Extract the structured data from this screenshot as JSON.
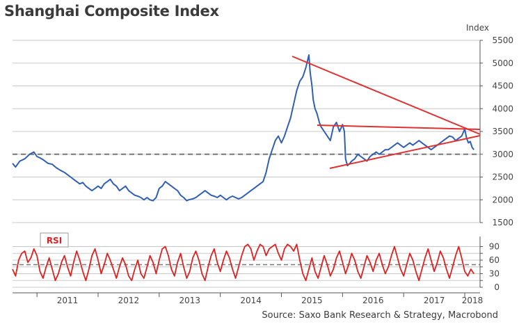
{
  "title": "Shanghai Composite Index",
  "source": "Source: Saxo Bank Research & Strategy, Macrobond",
  "colors": {
    "index_line": "#2f5fb3",
    "trend_line": "#e03030",
    "rsi_line": "#e02020",
    "grid": "#c8c8c8",
    "dashed": "#777777"
  },
  "chart_data": [
    {
      "type": "line",
      "name": "Shanghai Composite Index",
      "ylabel": "Index",
      "ylim": [
        1500,
        5500
      ],
      "yticks": [
        1500,
        2000,
        2500,
        3000,
        3500,
        4000,
        4500,
        5000,
        5500
      ],
      "xlim": [
        2010.6,
        2018.25
      ],
      "xticks": [
        {
          "label": "2011",
          "pos": 2011.0
        },
        {
          "label": "2012",
          "pos": 2012.0
        },
        {
          "label": "2013",
          "pos": 2013.0
        },
        {
          "label": "2014",
          "pos": 2014.0
        },
        {
          "label": "2015",
          "pos": 2015.0
        },
        {
          "label": "2016",
          "pos": 2016.0
        },
        {
          "label": "2017",
          "pos": 2017.0
        },
        {
          "label": "2018",
          "pos": 2018.0
        }
      ],
      "reference_line": 3000,
      "x": [
        2010.6,
        2010.65,
        2010.72,
        2010.8,
        2010.88,
        2010.95,
        2011.0,
        2011.05,
        2011.1,
        2011.18,
        2011.25,
        2011.32,
        2011.38,
        2011.45,
        2011.5,
        2011.55,
        2011.6,
        2011.65,
        2011.7,
        2011.75,
        2011.8,
        2011.85,
        2011.9,
        2011.95,
        2012.0,
        2012.05,
        2012.1,
        2012.15,
        2012.2,
        2012.25,
        2012.3,
        2012.35,
        2012.4,
        2012.45,
        2012.5,
        2012.55,
        2012.6,
        2012.65,
        2012.7,
        2012.75,
        2012.8,
        2012.85,
        2012.9,
        2012.92,
        2012.95,
        2013.0,
        2013.05,
        2013.1,
        2013.15,
        2013.2,
        2013.25,
        2013.3,
        2013.35,
        2013.4,
        2013.45,
        2013.48,
        2013.55,
        2013.6,
        2013.65,
        2013.7,
        2013.75,
        2013.8,
        2013.85,
        2013.9,
        2013.95,
        2014.0,
        2014.05,
        2014.1,
        2014.15,
        2014.2,
        2014.25,
        2014.3,
        2014.35,
        2014.4,
        2014.45,
        2014.5,
        2014.55,
        2014.6,
        2014.65,
        2014.7,
        2014.75,
        2014.8,
        2014.85,
        2014.9,
        2014.95,
        2015.0,
        2015.05,
        2015.1,
        2015.15,
        2015.2,
        2015.25,
        2015.3,
        2015.35,
        2015.4,
        2015.45,
        2015.47,
        2015.5,
        2015.52,
        2015.55,
        2015.58,
        2015.62,
        2015.65,
        2015.7,
        2015.75,
        2015.8,
        2015.85,
        2015.9,
        2015.95,
        2016.0,
        2016.03,
        2016.05,
        2016.08,
        2016.12,
        2016.15,
        2016.2,
        2016.25,
        2016.3,
        2016.35,
        2016.4,
        2016.45,
        2016.5,
        2016.55,
        2016.6,
        2016.65,
        2016.7,
        2016.75,
        2016.8,
        2016.85,
        2016.9,
        2016.95,
        2017.0,
        2017.05,
        2017.1,
        2017.15,
        2017.2,
        2017.25,
        2017.3,
        2017.35,
        2017.4,
        2017.45,
        2017.5,
        2017.55,
        2017.6,
        2017.65,
        2017.7,
        2017.75,
        2017.8,
        2017.85,
        2017.9,
        2017.95,
        2018.0,
        2018.03,
        2018.06,
        2018.09,
        2018.12,
        2018.15
      ],
      "values": [
        2800,
        2720,
        2850,
        2900,
        3000,
        3050,
        2950,
        2920,
        2880,
        2800,
        2780,
        2700,
        2650,
        2600,
        2550,
        2500,
        2450,
        2400,
        2350,
        2380,
        2300,
        2250,
        2200,
        2250,
        2300,
        2250,
        2350,
        2400,
        2450,
        2350,
        2300,
        2200,
        2250,
        2300,
        2200,
        2150,
        2100,
        2080,
        2050,
        2000,
        2050,
        2000,
        1980,
        2010,
        2050,
        2250,
        2300,
        2400,
        2350,
        2300,
        2250,
        2200,
        2100,
        2050,
        1980,
        2000,
        2020,
        2050,
        2100,
        2150,
        2200,
        2150,
        2100,
        2080,
        2050,
        2100,
        2050,
        2000,
        2050,
        2080,
        2050,
        2020,
        2050,
        2100,
        2150,
        2200,
        2250,
        2300,
        2350,
        2400,
        2600,
        2900,
        3100,
        3300,
        3400,
        3250,
        3400,
        3600,
        3800,
        4100,
        4400,
        4600,
        4700,
        4900,
        5180,
        4800,
        4500,
        4200,
        4000,
        3900,
        3700,
        3600,
        3500,
        3400,
        3300,
        3600,
        3700,
        3500,
        3650,
        3500,
        2900,
        2750,
        2800,
        2850,
        2900,
        3000,
        2950,
        2900,
        2850,
        2950,
        3000,
        3050,
        3000,
        3050,
        3100,
        3100,
        3150,
        3200,
        3250,
        3200,
        3150,
        3200,
        3250,
        3200,
        3250,
        3300,
        3250,
        3200,
        3150,
        3100,
        3150,
        3200,
        3250,
        3300,
        3350,
        3400,
        3380,
        3300,
        3350,
        3400,
        3550,
        3350,
        3250,
        3280,
        3150,
        3100
      ]
    },
    {
      "type": "line",
      "name": "RSI",
      "legend_label": "RSI",
      "ylim": [
        0,
        100
      ],
      "yticks": [
        0,
        15,
        30,
        45,
        60,
        75,
        90
      ],
      "ytick_labels": [
        "0",
        "",
        "30",
        "",
        "60",
        "",
        "90"
      ],
      "reference_line": 50,
      "x": [
        2010.6,
        2010.65,
        2010.7,
        2010.75,
        2010.8,
        2010.85,
        2010.9,
        2010.95,
        2011.0,
        2011.05,
        2011.1,
        2011.15,
        2011.2,
        2011.25,
        2011.3,
        2011.35,
        2011.4,
        2011.45,
        2011.5,
        2011.55,
        2011.6,
        2011.65,
        2011.7,
        2011.75,
        2011.8,
        2011.85,
        2011.9,
        2011.95,
        2012.0,
        2012.05,
        2012.1,
        2012.15,
        2012.2,
        2012.25,
        2012.3,
        2012.35,
        2012.4,
        2012.45,
        2012.5,
        2012.55,
        2012.6,
        2012.65,
        2012.7,
        2012.75,
        2012.8,
        2012.85,
        2012.9,
        2012.95,
        2013.0,
        2013.05,
        2013.1,
        2013.15,
        2013.2,
        2013.25,
        2013.3,
        2013.35,
        2013.4,
        2013.45,
        2013.5,
        2013.55,
        2013.6,
        2013.65,
        2013.7,
        2013.75,
        2013.8,
        2013.85,
        2013.9,
        2013.95,
        2014.0,
        2014.05,
        2014.1,
        2014.15,
        2014.2,
        2014.25,
        2014.3,
        2014.35,
        2014.4,
        2014.45,
        2014.5,
        2014.55,
        2014.6,
        2014.65,
        2014.7,
        2014.75,
        2014.8,
        2014.85,
        2014.9,
        2014.95,
        2015.0,
        2015.05,
        2015.1,
        2015.15,
        2015.2,
        2015.25,
        2015.3,
        2015.35,
        2015.4,
        2015.45,
        2015.5,
        2015.55,
        2015.6,
        2015.65,
        2015.7,
        2015.75,
        2015.8,
        2015.85,
        2015.9,
        2015.95,
        2016.0,
        2016.05,
        2016.1,
        2016.15,
        2016.2,
        2016.25,
        2016.3,
        2016.35,
        2016.4,
        2016.45,
        2016.5,
        2016.55,
        2016.6,
        2016.65,
        2016.7,
        2016.75,
        2016.8,
        2016.85,
        2016.9,
        2016.95,
        2017.0,
        2017.05,
        2017.1,
        2017.15,
        2017.2,
        2017.25,
        2017.3,
        2017.35,
        2017.4,
        2017.45,
        2017.5,
        2017.55,
        2017.6,
        2017.65,
        2017.7,
        2017.75,
        2017.8,
        2017.85,
        2017.9,
        2017.95,
        2018.0,
        2018.05,
        2018.1,
        2018.15
      ],
      "values": [
        40,
        25,
        60,
        75,
        80,
        55,
        65,
        85,
        70,
        35,
        20,
        45,
        65,
        40,
        15,
        30,
        55,
        70,
        45,
        25,
        55,
        80,
        60,
        35,
        15,
        40,
        70,
        85,
        60,
        30,
        50,
        75,
        60,
        40,
        20,
        45,
        65,
        50,
        25,
        15,
        40,
        60,
        30,
        20,
        45,
        70,
        55,
        30,
        60,
        85,
        90,
        70,
        40,
        25,
        55,
        75,
        45,
        20,
        35,
        65,
        80,
        60,
        30,
        15,
        45,
        70,
        85,
        55,
        35,
        60,
        80,
        65,
        40,
        20,
        45,
        70,
        90,
        95,
        85,
        60,
        80,
        95,
        90,
        70,
        85,
        90,
        95,
        75,
        60,
        85,
        95,
        90,
        80,
        95,
        60,
        30,
        15,
        40,
        65,
        35,
        20,
        45,
        70,
        50,
        25,
        40,
        65,
        80,
        55,
        30,
        50,
        75,
        60,
        35,
        20,
        45,
        70,
        55,
        35,
        60,
        75,
        50,
        30,
        45,
        70,
        90,
        65,
        40,
        25,
        50,
        75,
        60,
        35,
        15,
        40,
        65,
        85,
        60,
        35,
        55,
        80,
        65,
        40,
        20,
        45,
        70,
        90,
        65,
        35,
        25,
        40,
        30
      ]
    }
  ]
}
